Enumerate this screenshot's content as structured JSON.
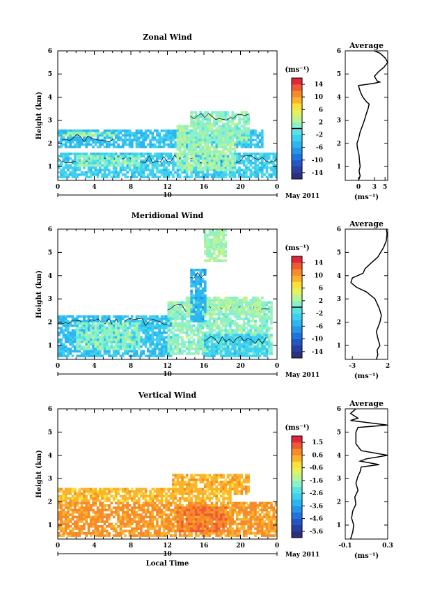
{
  "chart_data": [
    {
      "type": "heatmap",
      "title": "Zonal Wind",
      "ylabel": "Height (km)",
      "xlim": [
        0,
        24
      ],
      "ylim": [
        0.4,
        6
      ],
      "xticks": [
        "0",
        "4",
        "8",
        "12",
        "16",
        "20",
        "0"
      ],
      "yticks": [
        "1",
        "2",
        "3",
        "4",
        "5",
        "6"
      ],
      "day_label": "10",
      "month_label": "May 2011",
      "colorbar": {
        "unit": "(ms⁻¹)",
        "ticks": [
          "14",
          "10",
          "6",
          "2",
          "-2",
          "-6",
          "-10",
          "-14"
        ],
        "range": [
          -16,
          16
        ],
        "contour_level": 0
      },
      "field": {
        "layers": [
          {
            "h0": 0.5,
            "h1": 1.6,
            "t0": 0.0,
            "t1": 24.0,
            "v": -3
          },
          {
            "h0": 1.8,
            "h1": 2.6,
            "t0": 0.0,
            "t1": 22.5,
            "v": -4
          },
          {
            "h0": 2.3,
            "h1": 2.5,
            "t0": 0.5,
            "t1": 6.5,
            "v": 2
          },
          {
            "h0": 0.8,
            "h1": 2.8,
            "t0": 13.0,
            "t1": 19.5,
            "v": 2
          },
          {
            "h0": 2.0,
            "h1": 3.4,
            "t0": 14.5,
            "t1": 21.0,
            "v": 1
          },
          {
            "h0": 1.0,
            "h1": 1.5,
            "t0": 2.0,
            "t1": 9.0,
            "v": 1
          }
        ]
      },
      "average_profile": {
        "title": "Average",
        "xlabel": "(ms⁻¹)",
        "xticks": [
          "0",
          "3",
          "5"
        ],
        "xlim": [
          -2.5,
          5.5
        ],
        "height": [
          0.4,
          0.6,
          0.8,
          1.0,
          1.2,
          1.5,
          1.8,
          2.0,
          2.2,
          2.5,
          2.8,
          3.0,
          3.3,
          3.5,
          3.7,
          3.8,
          4.0,
          4.2,
          4.4,
          4.5,
          4.55,
          4.6,
          4.65,
          4.7,
          4.9,
          5.1,
          5.3,
          5.5,
          5.7,
          5.9,
          6.0
        ],
        "value": [
          0.0,
          0.3,
          0.1,
          0.3,
          0.2,
          0.1,
          -0.2,
          -0.3,
          0.0,
          0.3,
          0.8,
          1.1,
          1.5,
          1.8,
          2.0,
          1.5,
          0.8,
          0.4,
          0.1,
          0.0,
          1.5,
          3.0,
          4.0,
          3.5,
          3.0,
          3.8,
          4.8,
          5.5,
          5.0,
          4.0,
          3.0
        ]
      }
    },
    {
      "type": "heatmap",
      "title": "Meridional Wind",
      "ylabel": "Height (km)",
      "xlim": [
        0,
        24
      ],
      "ylim": [
        0.4,
        6
      ],
      "xticks": [
        "0",
        "4",
        "8",
        "12",
        "16",
        "20",
        "0"
      ],
      "yticks": [
        "1",
        "2",
        "3",
        "4",
        "5",
        "6"
      ],
      "day_label": "10",
      "month_label": "May 2011",
      "colorbar": {
        "unit": "(ms⁻¹)",
        "ticks": [
          "14",
          "10",
          "6",
          "2",
          "-2",
          "-6",
          "-10",
          "-14"
        ],
        "range": [
          -16,
          16
        ],
        "contour_level": 0
      },
      "field": {
        "layers": [
          {
            "h0": 0.5,
            "h1": 2.3,
            "t0": 0.0,
            "t1": 12.5,
            "v": -4
          },
          {
            "h0": 0.8,
            "h1": 2.0,
            "t0": 2.0,
            "t1": 9.0,
            "v": 1
          },
          {
            "h0": 0.6,
            "h1": 2.9,
            "t0": 12.0,
            "t1": 23.5,
            "v": 1
          },
          {
            "h0": 2.3,
            "h1": 3.1,
            "t0": 14.0,
            "t1": 22.5,
            "v": 2
          },
          {
            "h0": 2.0,
            "h1": 4.3,
            "t0": 14.5,
            "t1": 16.2,
            "v": -5
          },
          {
            "h0": 4.6,
            "h1": 5.9,
            "t0": 16.0,
            "t1": 18.5,
            "v": 2
          },
          {
            "h0": 0.5,
            "h1": 1.5,
            "t0": 16.0,
            "t1": 23.0,
            "v": -3
          }
        ]
      },
      "average_profile": {
        "title": "Average",
        "xlabel": "(ms⁻¹)",
        "xticks": [
          "-3",
          "2"
        ],
        "xlim": [
          -4,
          2
        ],
        "height": [
          0.4,
          0.6,
          0.8,
          1.0,
          1.3,
          1.6,
          2.0,
          2.3,
          2.6,
          3.0,
          3.3,
          3.5,
          3.7,
          3.9,
          4.1,
          4.3,
          4.5,
          4.8,
          5.0,
          5.2,
          5.5,
          5.8,
          6.0
        ],
        "value": [
          0.4,
          0.6,
          0.5,
          0.9,
          0.6,
          0.4,
          0.9,
          1.1,
          0.8,
          0.2,
          -1.0,
          -2.4,
          -3.2,
          -3.0,
          -1.5,
          -1.2,
          -0.5,
          0.6,
          1.0,
          1.4,
          1.8,
          1.9,
          1.8
        ]
      }
    },
    {
      "type": "heatmap",
      "title": "Vertical Wind",
      "ylabel": "Height (km)",
      "xlabel": "Local Time",
      "xlim": [
        0,
        24
      ],
      "ylim": [
        0.4,
        6
      ],
      "xticks": [
        "0",
        "4",
        "8",
        "12",
        "16",
        "20",
        "0"
      ],
      "yticks": [
        "1",
        "2",
        "3",
        "4",
        "5",
        "6"
      ],
      "day_label": "10",
      "month_label": "May 2011",
      "colorbar": {
        "unit": "(ms⁻¹)",
        "ticks": [
          "1.5",
          "0.6",
          "-0.6",
          "-1.6",
          "-2.6",
          "-3.6",
          "-4.6",
          "-5.6"
        ],
        "range": [
          -6.3,
          2.1
        ],
        "contour_level": null
      },
      "field": {
        "layers": [
          {
            "h0": 0.5,
            "h1": 2.0,
            "t0": 0.0,
            "t1": 24.0,
            "v": 0.6
          },
          {
            "h0": 2.0,
            "h1": 2.6,
            "t0": 0.0,
            "t1": 19.0,
            "v": 0.2
          },
          {
            "h0": 2.3,
            "h1": 3.2,
            "t0": 12.5,
            "t1": 21.0,
            "v": 0.3
          },
          {
            "h0": 0.7,
            "h1": 1.8,
            "t0": 13.0,
            "t1": 18.5,
            "v": 0.9
          }
        ]
      },
      "average_profile": {
        "title": "Average",
        "xlabel": "(ms⁻¹)",
        "xticks": [
          "-0.1",
          "0.3"
        ],
        "xlim": [
          -0.1,
          0.3
        ],
        "height": [
          0.4,
          0.7,
          1.0,
          1.3,
          1.6,
          1.9,
          2.2,
          2.5,
          2.8,
          3.1,
          3.3,
          3.5,
          3.6,
          3.75,
          3.85,
          4.0,
          4.2,
          4.5,
          5.0,
          5.2,
          5.3,
          5.5,
          5.6,
          5.8,
          6.0
        ],
        "value": [
          -0.05,
          -0.03,
          -0.02,
          -0.04,
          -0.03,
          0.0,
          -0.01,
          0.02,
          0.0,
          0.02,
          0.04,
          0.05,
          0.22,
          0.04,
          0.1,
          0.3,
          0.05,
          0.0,
          0.0,
          0.02,
          0.3,
          -0.05,
          0.02,
          -0.05,
          0.0
        ]
      }
    }
  ]
}
